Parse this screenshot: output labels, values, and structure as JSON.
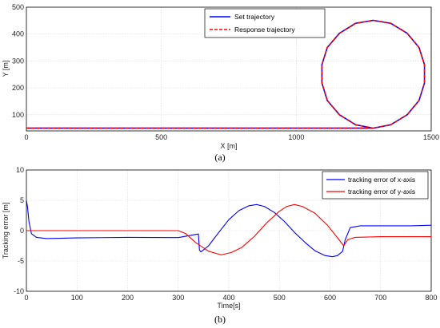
{
  "chart_data": [
    {
      "type": "line",
      "caption": "(a)",
      "xlabel": "X [m]",
      "ylabel": "Y [m]",
      "xlim": [
        0,
        1500
      ],
      "ylim": [
        40,
        500
      ],
      "xticks": [
        0,
        500,
        1000,
        1500
      ],
      "yticks": [
        100,
        200,
        300,
        400,
        500
      ],
      "grid": true,
      "legend": "top-center",
      "series": [
        {
          "name": "Set trajectory",
          "color": "#0000ff",
          "style": "solid",
          "points": [
            [
              0,
              50
            ],
            [
              1285,
              50
            ],
            [
              1350,
              63
            ],
            [
              1411,
              100
            ],
            [
              1455,
              153
            ],
            [
              1475,
              218
            ],
            [
              1475,
              286
            ],
            [
              1455,
              350
            ],
            [
              1411,
              403
            ],
            [
              1350,
              440
            ],
            [
              1285,
              451
            ],
            [
              1220,
              440
            ],
            [
              1160,
              403
            ],
            [
              1115,
              350
            ],
            [
              1095,
              286
            ],
            [
              1095,
              218
            ],
            [
              1115,
              153
            ],
            [
              1160,
              100
            ],
            [
              1220,
              63
            ],
            [
              1285,
              50
            ]
          ]
        },
        {
          "name": "Response trajectory",
          "color": "#ff0000",
          "style": "dashed",
          "points": [
            [
              0,
              50
            ],
            [
              1285,
              50
            ],
            [
              1350,
              63
            ],
            [
              1411,
              100
            ],
            [
              1455,
              153
            ],
            [
              1475,
              218
            ],
            [
              1475,
              286
            ],
            [
              1455,
              350
            ],
            [
              1411,
              403
            ],
            [
              1350,
              440
            ],
            [
              1285,
              451
            ],
            [
              1220,
              440
            ],
            [
              1160,
              403
            ],
            [
              1115,
              350
            ],
            [
              1095,
              286
            ],
            [
              1095,
              218
            ],
            [
              1115,
              153
            ],
            [
              1160,
              100
            ],
            [
              1220,
              63
            ],
            [
              1285,
              50
            ]
          ]
        }
      ]
    },
    {
      "type": "line",
      "caption": "(b)",
      "xlabel": "Time[s]",
      "ylabel": "Tracking error [m]",
      "xlim": [
        0,
        800
      ],
      "ylim": [
        -10,
        10
      ],
      "xticks": [
        0,
        100,
        200,
        300,
        400,
        500,
        600,
        700,
        800
      ],
      "yticks": [
        -10,
        -5,
        0,
        5,
        10
      ],
      "grid": true,
      "legend": "top-right",
      "series": [
        {
          "name": "tracking error of x-axis",
          "color": "#0000ff",
          "points": [
            [
              0,
              5
            ],
            [
              2,
              4
            ],
            [
              5,
              1.5
            ],
            [
              10,
              -0.5
            ],
            [
              20,
              -1.1
            ],
            [
              40,
              -1.3
            ],
            [
              100,
              -1.2
            ],
            [
              200,
              -1.1
            ],
            [
              300,
              -1.15
            ],
            [
              340,
              -0.55
            ],
            [
              342,
              -3.2
            ],
            [
              345,
              -3.5
            ],
            [
              360,
              -2.5
            ],
            [
              380,
              -0.3
            ],
            [
              400,
              1.8
            ],
            [
              420,
              3.3
            ],
            [
              440,
              4.1
            ],
            [
              455,
              4.3
            ],
            [
              470,
              4.0
            ],
            [
              490,
              3.0
            ],
            [
              510,
              1.5
            ],
            [
              530,
              -0.3
            ],
            [
              550,
              -1.9
            ],
            [
              570,
              -3.3
            ],
            [
              590,
              -4.1
            ],
            [
              605,
              -4.3
            ],
            [
              615,
              -4.1
            ],
            [
              625,
              -3.4
            ],
            [
              630,
              -1.5
            ],
            [
              640,
              0.5
            ],
            [
              660,
              0.8
            ],
            [
              700,
              0.8
            ],
            [
              760,
              0.8
            ],
            [
              800,
              0.9
            ]
          ]
        },
        {
          "name": "tracking error of y-axis",
          "color": "#ff0000",
          "points": [
            [
              0,
              0
            ],
            [
              100,
              0
            ],
            [
              200,
              0
            ],
            [
              300,
              0
            ],
            [
              315,
              -0.5
            ],
            [
              335,
              -2
            ],
            [
              360,
              -3.4
            ],
            [
              385,
              -4.0
            ],
            [
              405,
              -3.6
            ],
            [
              425,
              -2.8
            ],
            [
              450,
              -1
            ],
            [
              475,
              1.3
            ],
            [
              500,
              3.2
            ],
            [
              515,
              4.0
            ],
            [
              530,
              4.3
            ],
            [
              545,
              4.0
            ],
            [
              570,
              2.9
            ],
            [
              595,
              0.9
            ],
            [
              615,
              -1.2
            ],
            [
              627,
              -2.5
            ],
            [
              635,
              -1.5
            ],
            [
              650,
              -1.1
            ],
            [
              700,
              -1.0
            ],
            [
              800,
              -1.0
            ]
          ]
        }
      ]
    }
  ]
}
